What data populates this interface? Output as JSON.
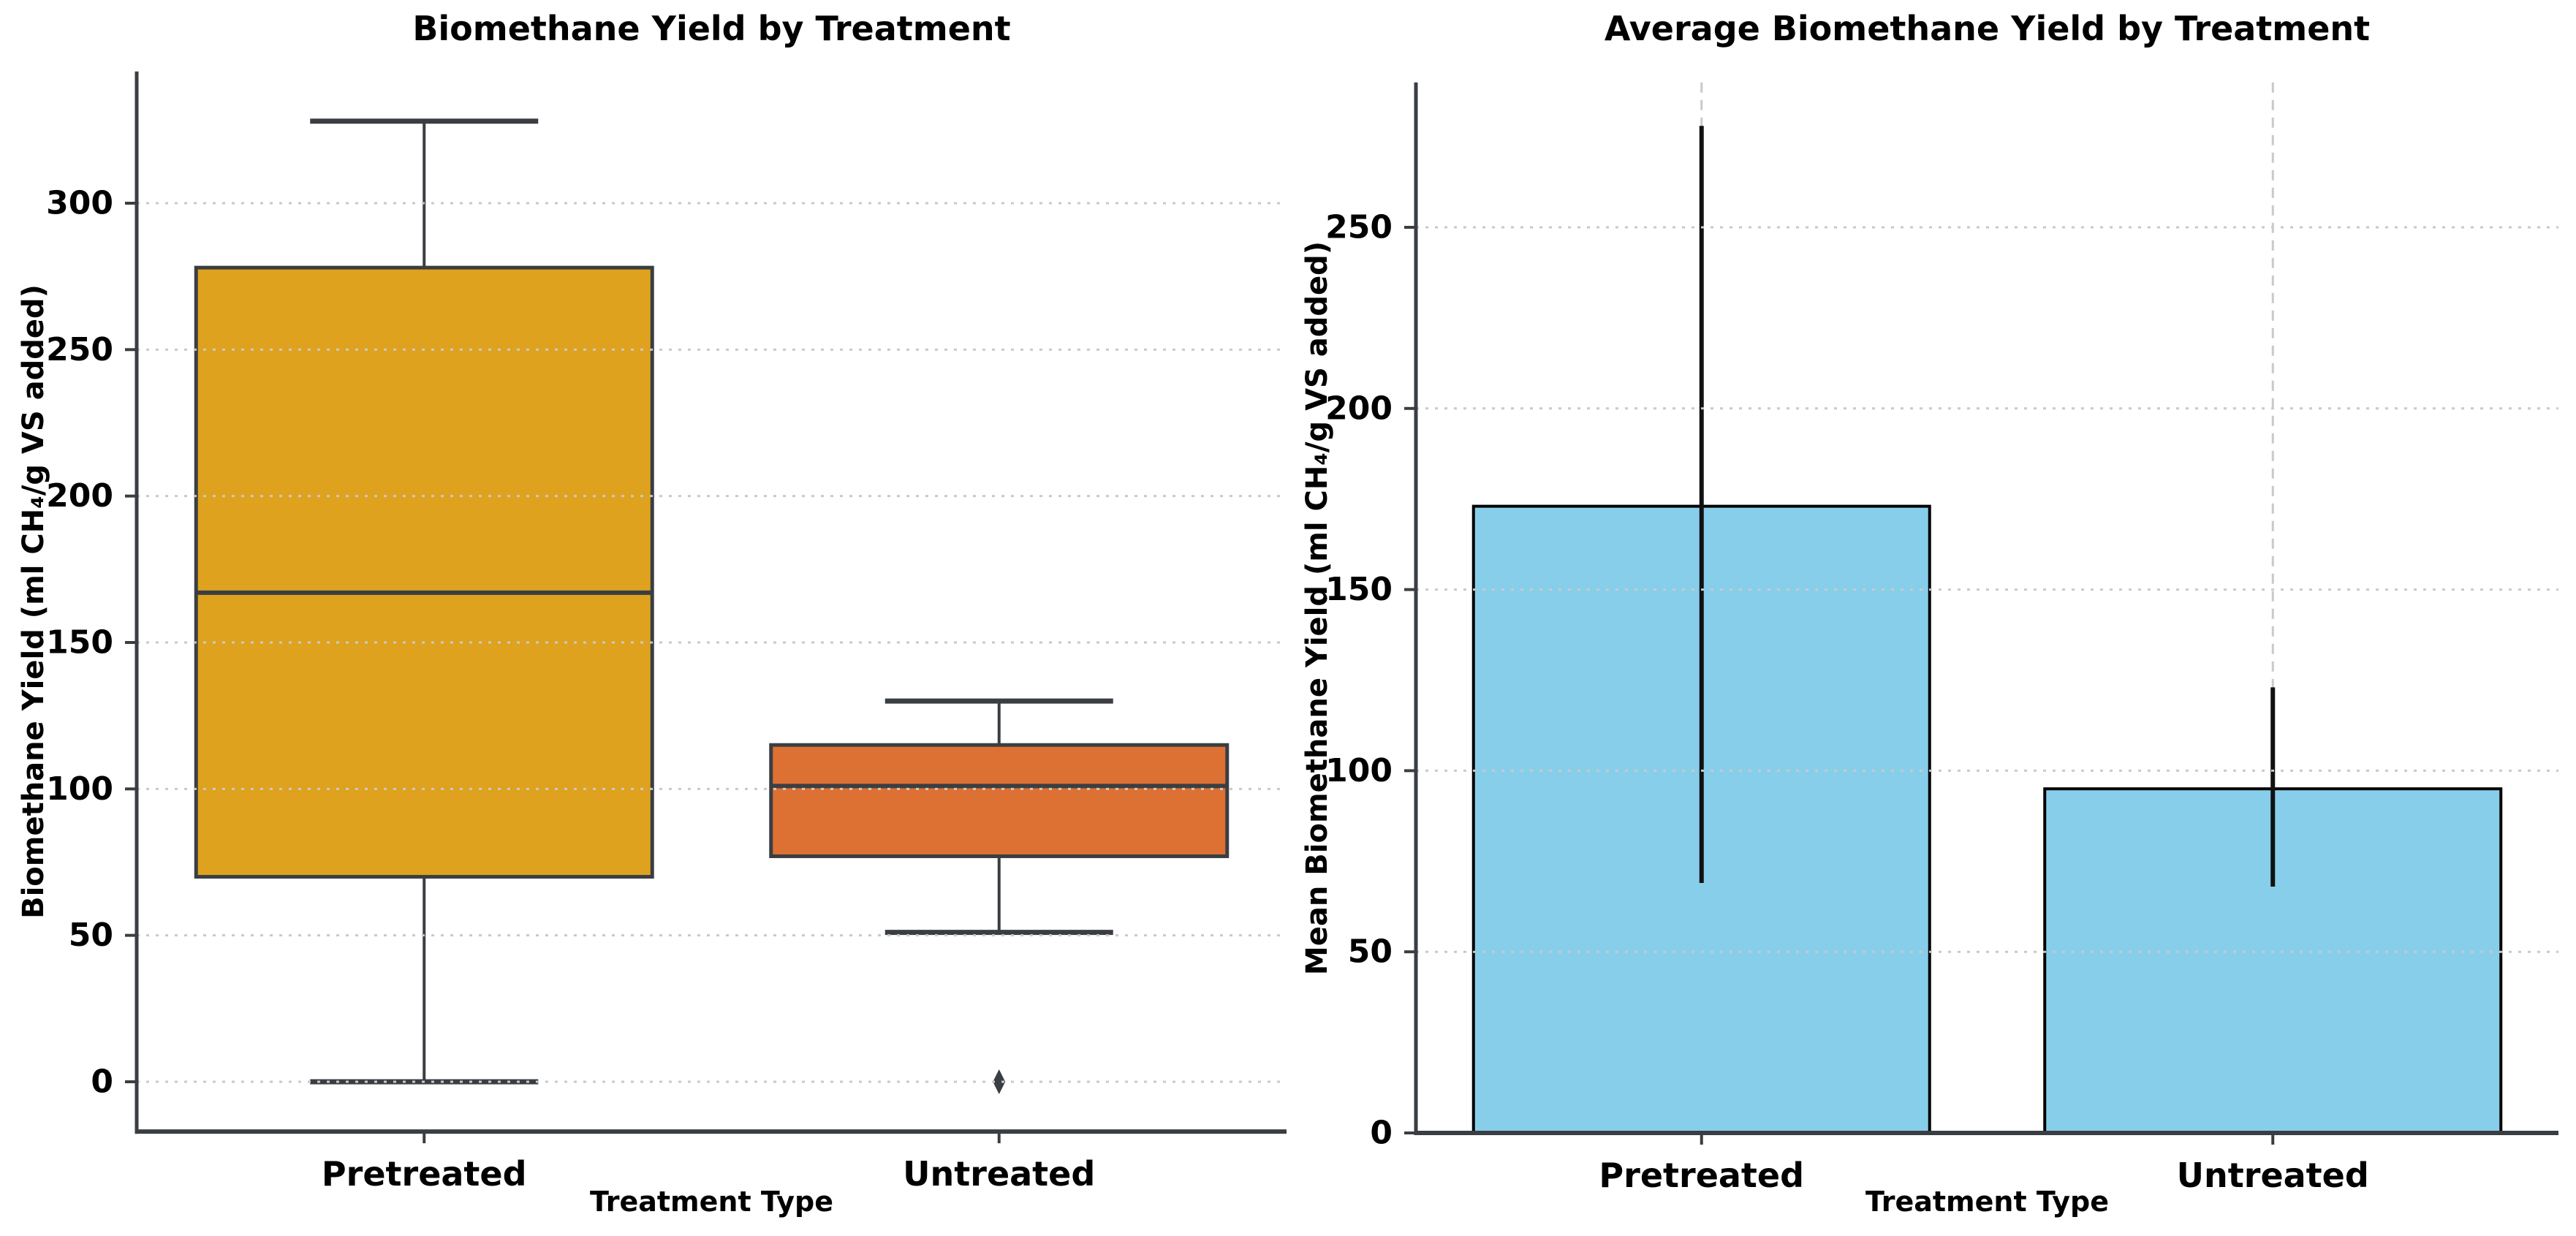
{
  "style": {
    "background": "#FFFFFF",
    "ink": "#3A3E42",
    "grid_color": "#C9C9C9",
    "text_color": "#000000",
    "error_bar_color": "#111111",
    "bar_edge_color": "#000000",
    "box_fill_pretreated": "#DFA21E",
    "box_fill_untreated": "#DD7033",
    "bar_fill": "#87CEEB"
  },
  "chart_data": [
    {
      "type": "box",
      "title": "Biomethane Yield by Treatment",
      "xlabel": "Treatment Type",
      "ylabel": "Biomethane Yield (ml CH₄/g VS added)",
      "categories": [
        "Pretreated",
        "Untreated"
      ],
      "yticks": [
        0,
        50,
        100,
        150,
        200,
        250,
        300
      ],
      "ylim": [
        -17,
        345
      ],
      "grid": {
        "horizontal": "dotted",
        "vertical": "none"
      },
      "legend": "none",
      "boxes": [
        {
          "category": "Pretreated",
          "whisker_low": 0,
          "q1": 70,
          "median": 167,
          "q3": 278,
          "whisker_high": 328,
          "outliers": [],
          "fill": "#DFA21E"
        },
        {
          "category": "Untreated",
          "whisker_low": 51,
          "q1": 77,
          "median": 101,
          "q3": 115,
          "whisker_high": 130,
          "outliers": [
            0
          ],
          "fill": "#DD7033"
        }
      ]
    },
    {
      "type": "bar",
      "title": "Average Biomethane Yield by Treatment",
      "xlabel": "Treatment Type",
      "ylabel": "Mean Biomethane Yield (ml CH₄/g VS added)",
      "categories": [
        "Pretreated",
        "Untreated"
      ],
      "yticks": [
        0,
        50,
        100,
        150,
        200,
        250
      ],
      "ylim": [
        0,
        290
      ],
      "grid": {
        "horizontal": "dotted",
        "vertical": "dashed"
      },
      "legend": "none",
      "bars": [
        {
          "category": "Pretreated",
          "mean": 173,
          "error_low": 69,
          "error_high": 278,
          "fill": "#87CEEB"
        },
        {
          "category": "Untreated",
          "mean": 95,
          "error_low": 68,
          "error_high": 123,
          "fill": "#87CEEB"
        }
      ]
    }
  ]
}
